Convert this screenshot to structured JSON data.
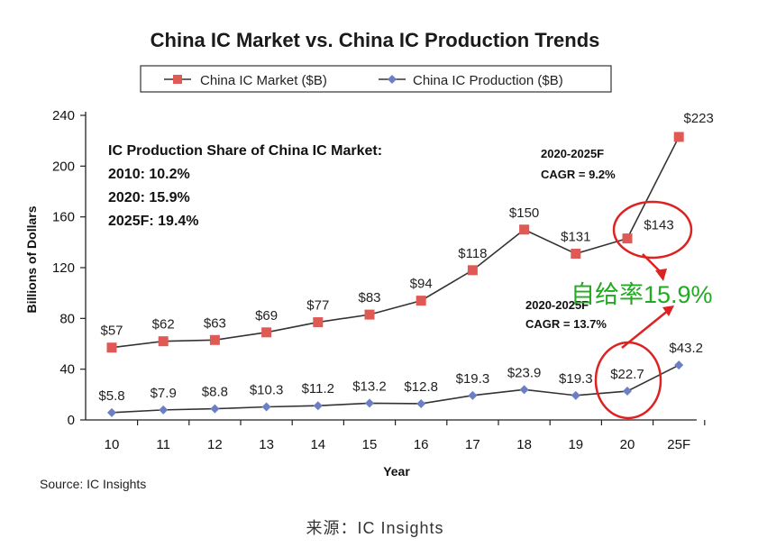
{
  "chart_data": {
    "type": "line",
    "title": "China IC Market vs. China IC Production Trends",
    "xlabel": "Year",
    "ylabel": "Billions of Dollars",
    "categories": [
      "10",
      "11",
      "12",
      "13",
      "14",
      "15",
      "16",
      "17",
      "18",
      "19",
      "20",
      "25F"
    ],
    "ylim": [
      0,
      240
    ],
    "yticks": [
      0,
      40,
      80,
      120,
      160,
      200,
      240
    ],
    "grid": false,
    "legend_placement": "top",
    "series": [
      {
        "name": "China IC Market ($B)",
        "color": "#e05a55",
        "line_color": "#333333",
        "marker": "square",
        "values": [
          57,
          62,
          63,
          69,
          77,
          83,
          94,
          118,
          150,
          131,
          143,
          223
        ],
        "labels": [
          "$57",
          "$62",
          "$63",
          "$69",
          "$77",
          "$83",
          "$94",
          "$118",
          "$150",
          "$131",
          "$143",
          "$223"
        ]
      },
      {
        "name": "China IC Production ($B)",
        "color": "#6b7fc4",
        "line_color": "#333333",
        "marker": "diamond",
        "values": [
          5.8,
          7.9,
          8.8,
          10.3,
          11.2,
          13.2,
          12.8,
          19.3,
          23.9,
          19.3,
          22.7,
          43.2
        ],
        "labels": [
          "$5.8",
          "$7.9",
          "$8.8",
          "$10.3",
          "$11.2",
          "$13.2",
          "$12.8",
          "$19.3",
          "$23.9",
          "$19.3",
          "$22.7",
          "$43.2"
        ]
      }
    ],
    "annotations": {
      "share_lines": [
        "IC Production Share of China IC Market:",
        "2010: 10.2%",
        "2020: 15.9%",
        "2025F: 19.4%"
      ],
      "market_cagr": [
        "2020-2025F",
        "CAGR = 9.2%"
      ],
      "production_cagr": [
        "2020-2025F",
        "CAGR = 13.7%"
      ],
      "self_sufficiency": "自给率15.9%",
      "highlight_color": "#dd2222",
      "note_color": "#22aa22"
    },
    "source": "Source: IC Insights"
  },
  "caption": "来源：IC Insights"
}
